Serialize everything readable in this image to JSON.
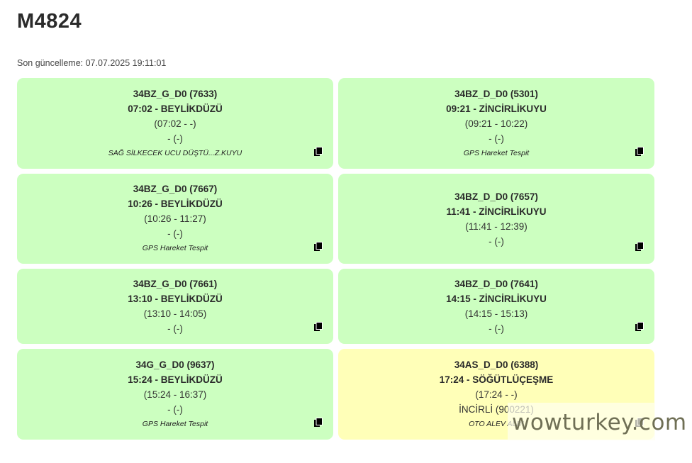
{
  "title": "M4824",
  "last_update": "Son güncelleme: 07.07.2025 19:11:01",
  "colors": {
    "green": "#ccffc0",
    "yellow": "#ffffb8"
  },
  "cards": [
    {
      "id": "34BZ_G_D0 (7633)",
      "dep": "07:02 - BEYLİKDÜZÜ",
      "times": "(07:02 - -)",
      "stop": "- (-)",
      "note": "SAĞ SİLKECEK UCU DÜŞTÜ...Z.KUYU",
      "status": "green"
    },
    {
      "id": "34BZ_D_D0 (5301)",
      "dep": "09:21 - ZİNCİRLİKUYU",
      "times": "(09:21 - 10:22)",
      "stop": "- (-)",
      "note": "GPS Hareket Tespit",
      "status": "green"
    },
    {
      "id": "34BZ_G_D0 (7667)",
      "dep": "10:26 - BEYLİKDÜZÜ",
      "times": "(10:26 - 11:27)",
      "stop": "- (-)",
      "note": "GPS Hareket Tespit",
      "status": "green"
    },
    {
      "id": "34BZ_D_D0 (7657)",
      "dep": "11:41 - ZİNCİRLİKUYU",
      "times": "(11:41 - 12:39)",
      "stop": "- (-)",
      "note": "",
      "status": "green"
    },
    {
      "id": "34BZ_G_D0 (7661)",
      "dep": "13:10 - BEYLİKDÜZÜ",
      "times": "(13:10 - 14:05)",
      "stop": "- (-)",
      "note": "",
      "status": "green"
    },
    {
      "id": "34BZ_D_D0 (7641)",
      "dep": "14:15 - ZİNCİRLİKUYU",
      "times": "(14:15 - 15:13)",
      "stop": "- (-)",
      "note": "",
      "status": "green"
    },
    {
      "id": "34G_G_D0 (9637)",
      "dep": "15:24 - BEYLİKDÜZÜ",
      "times": "(15:24 - 16:37)",
      "stop": "- (-)",
      "note": "GPS Hareket Tespit",
      "status": "green"
    },
    {
      "id": "34AS_D_D0 (6388)",
      "dep": "17:24 - SÖĞÜTLÜÇEŞME",
      "times": "(17:24 - -)",
      "stop": "İNCİRLİ (900221)",
      "note": "OTO ALEV ALDI",
      "status": "yellow"
    }
  ],
  "copy_icon": "copy-icon",
  "watermark": "wowturkey.com"
}
